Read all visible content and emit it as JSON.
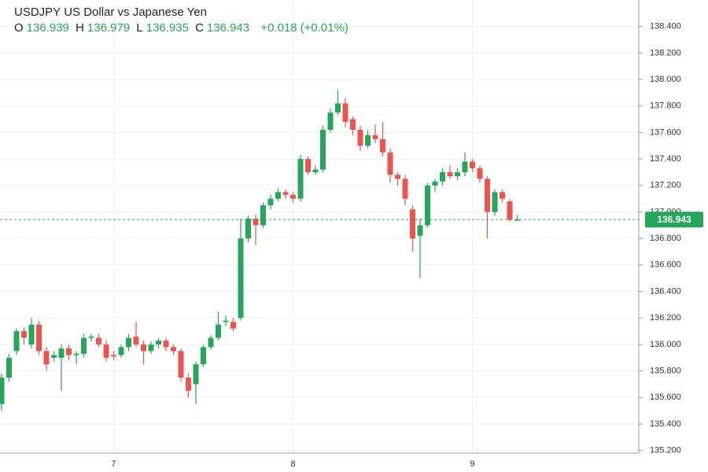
{
  "chart_data": {
    "type": "candlestick",
    "symbol": "USDJPY",
    "description": "US Dollar vs Japanese Yen",
    "ohlc_labels": [
      "O",
      "H",
      "L",
      "C"
    ],
    "change": {
      "value": 0.018,
      "label": "+0.018"
    },
    "change_percent": {
      "value": 0.01,
      "label": "(+0.01%)"
    },
    "categories": [
      null,
      null,
      null,
      null,
      null,
      null,
      null,
      null,
      null,
      null,
      null,
      null,
      null,
      null,
      null,
      "7",
      null,
      null,
      null,
      null,
      null,
      null,
      null,
      null,
      null,
      null,
      null,
      null,
      null,
      null,
      null,
      null,
      null,
      null,
      null,
      null,
      null,
      null,
      null,
      "8",
      null,
      null,
      null,
      null,
      null,
      null,
      null,
      null,
      null,
      null,
      null,
      null,
      null,
      null,
      null,
      null,
      null,
      null,
      null,
      null,
      null,
      null,
      null,
      "9",
      null,
      null,
      null,
      null,
      null,
      null
    ],
    "open": [
      135.55,
      135.75,
      135.95,
      136.1,
      136.0,
      136.15,
      135.95,
      135.9,
      135.9,
      135.97,
      135.92,
      135.93,
      136.05,
      136.05,
      136.0,
      135.92,
      135.92,
      135.98,
      136.06,
      136.0,
      135.95,
      136.0,
      136.03,
      135.98,
      135.95,
      135.75,
      135.7,
      135.85,
      135.98,
      136.05,
      136.17,
      136.17,
      136.2,
      136.8,
      136.95,
      136.9,
      137.05,
      137.1,
      137.15,
      137.13,
      137.1,
      137.4,
      137.3,
      137.32,
      137.62,
      137.75,
      137.82,
      137.7,
      137.62,
      137.5,
      137.58,
      137.55,
      137.45,
      137.28,
      137.25,
      137.02,
      136.82,
      136.9,
      137.2,
      137.23,
      137.3,
      137.27,
      137.3,
      137.38,
      137.33,
      137.25,
      137.0,
      137.15,
      137.08,
      136.939
    ],
    "high": [
      135.78,
      135.93,
      136.12,
      136.13,
      136.2,
      136.18,
      135.98,
      135.95,
      136.0,
      136.0,
      135.95,
      136.08,
      136.08,
      136.08,
      136.03,
      135.95,
      136.0,
      136.08,
      136.17,
      136.03,
      136.02,
      136.05,
      136.05,
      136.0,
      135.97,
      135.78,
      135.87,
      136.0,
      136.07,
      136.25,
      136.22,
      136.2,
      136.95,
      136.97,
      136.98,
      137.07,
      137.13,
      137.18,
      137.17,
      137.15,
      137.43,
      137.42,
      137.35,
      137.65,
      137.78,
      137.92,
      137.86,
      137.72,
      137.65,
      137.62,
      137.66,
      137.68,
      137.48,
      137.3,
      137.28,
      137.05,
      136.95,
      137.22,
      137.25,
      137.33,
      137.35,
      137.33,
      137.45,
      137.4,
      137.35,
      137.27,
      137.17,
      137.17,
      137.1,
      136.979
    ],
    "low": [
      135.5,
      135.72,
      135.92,
      136.0,
      135.97,
      135.92,
      135.8,
      135.87,
      135.65,
      135.88,
      135.85,
      135.9,
      136.02,
      135.98,
      135.87,
      135.88,
      135.9,
      135.95,
      135.98,
      135.85,
      135.93,
      135.97,
      135.95,
      135.92,
      135.72,
      135.6,
      135.55,
      135.83,
      135.96,
      136.03,
      136.14,
      136.1,
      136.18,
      136.77,
      136.75,
      136.88,
      137.02,
      137.08,
      137.1,
      137.07,
      137.08,
      137.28,
      137.28,
      137.3,
      137.6,
      137.73,
      137.64,
      137.58,
      137.46,
      137.48,
      137.52,
      137.42,
      137.22,
      137.2,
      137.05,
      136.7,
      136.5,
      136.88,
      137.15,
      137.2,
      137.25,
      137.24,
      137.27,
      137.3,
      137.22,
      136.8,
      136.97,
      137.07,
      136.93,
      136.935
    ],
    "close": [
      135.75,
      135.9,
      136.1,
      136.05,
      136.15,
      135.95,
      135.85,
      135.92,
      135.97,
      135.92,
      135.93,
      136.05,
      136.06,
      136.0,
      135.9,
      135.91,
      135.98,
      136.05,
      136.0,
      135.95,
      136.0,
      136.03,
      135.98,
      135.95,
      135.75,
      135.65,
      135.85,
      135.98,
      136.05,
      136.15,
      136.18,
      136.12,
      136.8,
      136.95,
      136.9,
      137.05,
      137.1,
      137.15,
      137.13,
      137.1,
      137.4,
      137.3,
      137.32,
      137.62,
      137.75,
      137.82,
      137.68,
      137.62,
      137.5,
      137.58,
      137.55,
      137.45,
      137.28,
      137.25,
      137.1,
      136.8,
      136.9,
      137.2,
      137.23,
      137.3,
      137.27,
      137.3,
      137.38,
      137.33,
      137.25,
      137.0,
      137.15,
      137.1,
      136.94,
      136.943
    ],
    "up_color": "#26a65b",
    "down_color": "#ef5350",
    "ylim": [
      135.18,
      138.6
    ],
    "yticks": [
      {
        "value": 135.2,
        "label": "135.200"
      },
      {
        "value": 135.4,
        "label": "135.400"
      },
      {
        "value": 135.6,
        "label": "135.600"
      },
      {
        "value": 135.8,
        "label": "135.800"
      },
      {
        "value": 136.0,
        "label": "136.000"
      },
      {
        "value": 136.2,
        "label": "136.200"
      },
      {
        "value": 136.4,
        "label": "136.400"
      },
      {
        "value": 136.6,
        "label": "136.600"
      },
      {
        "value": 136.8,
        "label": "136.800"
      },
      {
        "value": 137.0,
        "label": "137.000"
      },
      {
        "value": 137.2,
        "label": "137.200"
      },
      {
        "value": 137.4,
        "label": "137.400"
      },
      {
        "value": 137.6,
        "label": "137.600"
      },
      {
        "value": 137.8,
        "label": "137.800"
      },
      {
        "value": 138.0,
        "label": "138.000"
      },
      {
        "value": 138.2,
        "label": "138.200"
      },
      {
        "value": 138.4,
        "label": "138.400"
      }
    ],
    "grid": true
  }
}
